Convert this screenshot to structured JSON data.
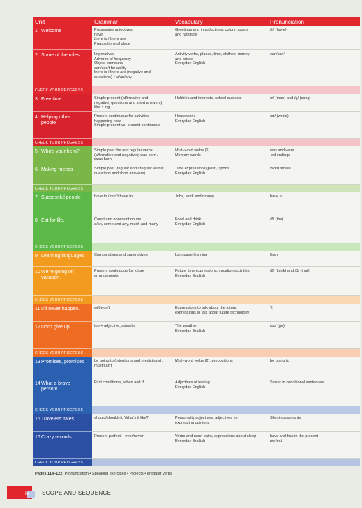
{
  "header": {
    "unit": "Unit",
    "grammar": "Grammar",
    "vocabulary": "Vocabulary",
    "pronunciation": "Pronunciation"
  },
  "groups": [
    {
      "color": "#e2262e",
      "tint": "#f5c6c9",
      "check": "CHECK YOUR PROGRESS",
      "units": [
        {
          "number": 1,
          "title": "Welcome",
          "grammar": [
            "Possessive adjectives",
            "have",
            "there is / there are",
            "Prepositions of place"
          ],
          "vocabulary": [
            "Greetings and introductions, colors, rooms",
            "and furniture"
          ],
          "pronunciation": [
            "/h/ (have)"
          ]
        },
        {
          "number": 2,
          "title": "Some of the rules",
          "grammar": [
            "Imperatives",
            "Adverbs of frequency",
            "Object pronouns",
            "can/can't for ability",
            "there is / there are (negative and",
            "questions) + a/an/any"
          ],
          "vocabulary": [
            "Activity verbs, places, time, clothes, money",
            "and prices",
            "Everyday English"
          ],
          "pronunciation": [
            "can/can't"
          ]
        }
      ]
    },
    {
      "color": "#d8232c",
      "tint": "#f3c4c7",
      "check": "CHECK YOUR PROGRESS",
      "units": [
        {
          "number": 3,
          "title": "Free time",
          "grammar": [
            "Simple present (affirmative and",
            "negative; questions and short answers)",
            "like + ing"
          ],
          "vocabulary": [
            "Hobbies and interests, school subjects"
          ],
          "pronunciation": [
            "/n/ (man) and /ŋ/ (song)"
          ]
        },
        {
          "number": 4,
          "title": "Helping other people",
          "grammar": [
            "Present continuous for activities",
            "happening now",
            "Simple present vs. present continuous"
          ],
          "vocabulary": [
            "Housework",
            "Everyday English"
          ],
          "pronunciation": [
            "/ər/ (world)"
          ]
        }
      ]
    },
    {
      "color": "#7bb648",
      "tint": "#cfe4b9",
      "check": "CHECK YOUR PROGRESS",
      "units": [
        {
          "number": 5,
          "title": "Who's your hero?",
          "grammar": [
            "Simple past: be and regular verbs",
            "(affirmative and negative); was born /",
            "were born"
          ],
          "vocabulary": [
            "Multi-word verbs (1)",
            "Memory words"
          ],
          "pronunciation": [
            "was and were",
            "-ed endings"
          ]
        },
        {
          "number": 6,
          "title": "Making friends",
          "grammar": [
            "Simple past (regular and irregular verbs;",
            "questions and short answers)"
          ],
          "vocabulary": [
            "Time expressions (past), sports",
            "Everyday English"
          ],
          "pronunciation": [
            "Word stress"
          ]
        }
      ]
    },
    {
      "color": "#5db947",
      "tint": "#c9e6bd",
      "check": "CHECK YOUR PROGRESS",
      "units": [
        {
          "number": 7,
          "title": "Successful people",
          "grammar": [
            "have to / don't have to"
          ],
          "vocabulary": [
            "Jobs, work and money"
          ],
          "pronunciation": [
            "have to"
          ]
        },
        {
          "number": 8,
          "title": "Eat for life.",
          "grammar": [
            "Count and noncount nouns",
            "a/an, some and any, much and many"
          ],
          "vocabulary": [
            "Food and drink",
            "Everyday English"
          ],
          "pronunciation": [
            "/ð/ (the)"
          ]
        }
      ]
    },
    {
      "color": "#f29b1f",
      "tint": "#fad8b4",
      "check": "CHECK YOUR PROGRESS",
      "units": [
        {
          "number": 9,
          "title": "Learning languages",
          "grammar": [
            "Comparatives and superlatives"
          ],
          "vocabulary": [
            "Language learning"
          ],
          "pronunciation": [
            "than"
          ]
        },
        {
          "number": 10,
          "title": "We're going on vacation.",
          "grammar": [
            "Present continuous for future",
            "arrangements"
          ],
          "vocabulary": [
            "Future time expressions, vacation activities",
            "Everyday English"
          ],
          "pronunciation": [
            "/θ/ (think) and /ð/ (that)"
          ]
        }
      ]
    },
    {
      "color": "#ef6c23",
      "tint": "#f9ceb2",
      "check": "CHECK YOUR PROGRESS",
      "units": [
        {
          "number": 11,
          "title": "It'll never happen.",
          "grammar": [
            "will/won't"
          ],
          "vocabulary": [
            "Expressions to talk about the future,",
            "expressions to talk about future technology"
          ],
          "pronunciation": [
            "'ll"
          ]
        },
        {
          "number": 12,
          "title": "Don't give up.",
          "grammar": [
            "too + adjective, adverbs"
          ],
          "vocabulary": [
            "The weather",
            "Everyday English"
          ],
          "pronunciation": [
            "/ou/ (go)"
          ]
        }
      ]
    },
    {
      "color": "#2b60b1",
      "tint": "#b8c8e5",
      "check": "CHECK YOUR PROGRESS",
      "units": [
        {
          "number": 13,
          "title": "Promises, promises",
          "grammar": [
            "be going to (intentions and predictions),",
            "must/can't"
          ],
          "vocabulary": [
            "Multi-word verbs (2), prepositions"
          ],
          "pronunciation": [
            "be going to"
          ]
        },
        {
          "number": 14,
          "title": "What a brave person!",
          "grammar": [
            "First conditional, when and if"
          ],
          "vocabulary": [
            "Adjectives of feeling",
            "Everyday English"
          ],
          "pronunciation": [
            "Stress in conditional sentences"
          ]
        }
      ]
    },
    {
      "color": "#2a4fa3",
      "tint": "#b6c3e2",
      "check": "CHECK YOUR PROGRESS",
      "units": [
        {
          "number": 15,
          "title": "Travelers' tales",
          "grammar": [
            "should/shouldn't, What's it like?"
          ],
          "vocabulary": [
            "Personality adjectives, adjectives for",
            "expressing opinions"
          ],
          "pronunciation": [
            "Silent consonants"
          ]
        },
        {
          "number": 16,
          "title": "Crazy records",
          "grammar": [
            "Present perfect + ever/never"
          ],
          "vocabulary": [
            "Verbs and noun pairs, expressions about sleep",
            "Everyday English"
          ],
          "pronunciation": [
            "have and has in the present",
            "perfect"
          ]
        }
      ]
    }
  ],
  "pages_note": {
    "pages": "Pages 114–122",
    "items": "Pronunciation • Speaking exercises • Projects • Irregular verbs"
  },
  "footer": {
    "page": "iv",
    "title": "SCOPE AND SEQUENCE"
  }
}
